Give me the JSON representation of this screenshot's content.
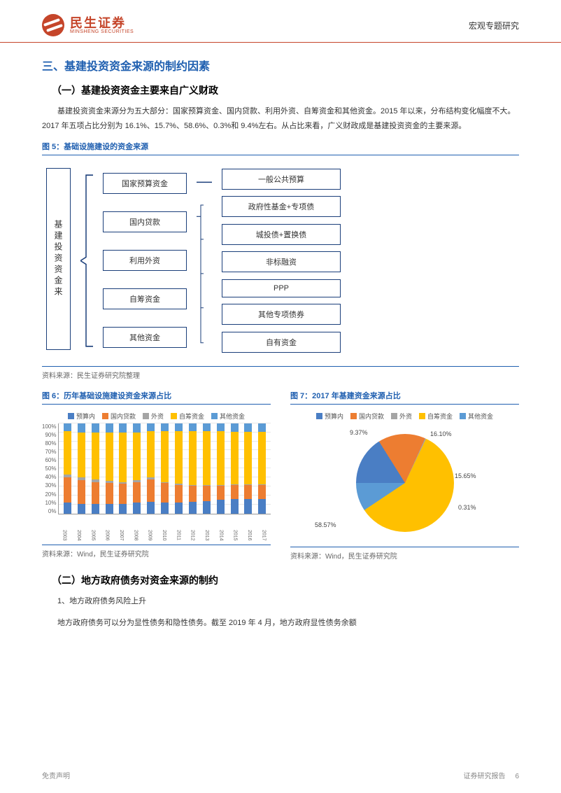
{
  "header": {
    "company_cn": "民生证券",
    "company_en": "MINSHENG SECURITIES",
    "right_text": "宏观专题研究"
  },
  "section_title": "三、基建投资资金来源的制约因素",
  "sub1_title": "（一）基建投资资金主要来自广义财政",
  "para1": "基建投资资金来源分为五大部分：国家预算资金、国内贷款、利用外资、自筹资金和其他资金。2015 年以来，分布结构变化幅度不大。2017 年五项占比分别为 16.1%、15.7%、58.6%、0.3%和 9.4%左右。从占比来看，广义财政成是基建投资资金的主要来源。",
  "fig5": {
    "title": "图 5：基础设施建设的资金来源",
    "root": "基建投资资金来",
    "mid": [
      "国家预算资金",
      "国内贷款",
      "利用外资",
      "自筹资金",
      "其他资金"
    ],
    "right_top": "一般公共预算",
    "right_rest": [
      "政府性基金+专项债",
      "城投债+置换债",
      "非标融资",
      "PPP",
      "其他专项债券",
      "自有资金"
    ],
    "source": "资料来源：民生证券研究院整理",
    "border_color": "#1a3e7a"
  },
  "fig6": {
    "title": "图 6：历年基础设施建设资金来源占比",
    "legend": [
      "预算内",
      "国内贷款",
      "外资",
      "自筹资金",
      "其他资金"
    ],
    "colors": [
      "#4a7ec4",
      "#ed7d31",
      "#a5a5a5",
      "#ffc000",
      "#5b9bd5"
    ],
    "years": [
      "2003",
      "2004",
      "2005",
      "2006",
      "2007",
      "2008",
      "2009",
      "2010",
      "2011",
      "2012",
      "2013",
      "2014",
      "2015",
      "2016",
      "2017"
    ],
    "data": [
      [
        12,
        28,
        3,
        48,
        9
      ],
      [
        11,
        26,
        3,
        50,
        10
      ],
      [
        11,
        24,
        3,
        52,
        10
      ],
      [
        11,
        23,
        2,
        54,
        10
      ],
      [
        11,
        22,
        2,
        55,
        10
      ],
      [
        12,
        23,
        2,
        53,
        10
      ],
      [
        13,
        25,
        2,
        51,
        9
      ],
      [
        12,
        22,
        1,
        56,
        9
      ],
      [
        12,
        20,
        1,
        58,
        9
      ],
      [
        13,
        18,
        1,
        59,
        9
      ],
      [
        14,
        17,
        1,
        59,
        9
      ],
      [
        15,
        16,
        1,
        59,
        9
      ],
      [
        16,
        16,
        0.5,
        58,
        9.5
      ],
      [
        16,
        16,
        0.4,
        58,
        9.6
      ],
      [
        16.1,
        15.7,
        0.3,
        58.6,
        9.3
      ]
    ],
    "y_ticks": [
      "100%",
      "90%",
      "80%",
      "70%",
      "60%",
      "50%",
      "40%",
      "30%",
      "20%",
      "10%",
      "0%"
    ],
    "source": "资料来源：Wind，民生证券研究院"
  },
  "fig7": {
    "title": "图 7：2017 年基建资金来源占比",
    "legend": [
      "预算内",
      "国内贷款",
      "外资",
      "自筹资金",
      "其他资金"
    ],
    "colors": [
      "#4a7ec4",
      "#ed7d31",
      "#a5a5a5",
      "#ffc000",
      "#5b9bd5"
    ],
    "slices": [
      16.1,
      15.65,
      0.31,
      58.57,
      9.37
    ],
    "labels": [
      "16.10%",
      "15.65%",
      "0.31%",
      "58.57%",
      "9.37%"
    ],
    "source": "资料来源：Wind，民生证券研究院"
  },
  "sub2_title": "（二）地方政府债务对资金来源的制约",
  "sub2_line1": "1、地方政府债务风险上升",
  "sub2_para": "地方政府债务可以分为显性债务和隐性债务。截至 2019 年 4 月，地方政府显性债务余额",
  "footer": {
    "left": "免责声明",
    "right": "证券研究报告",
    "page": "6"
  }
}
